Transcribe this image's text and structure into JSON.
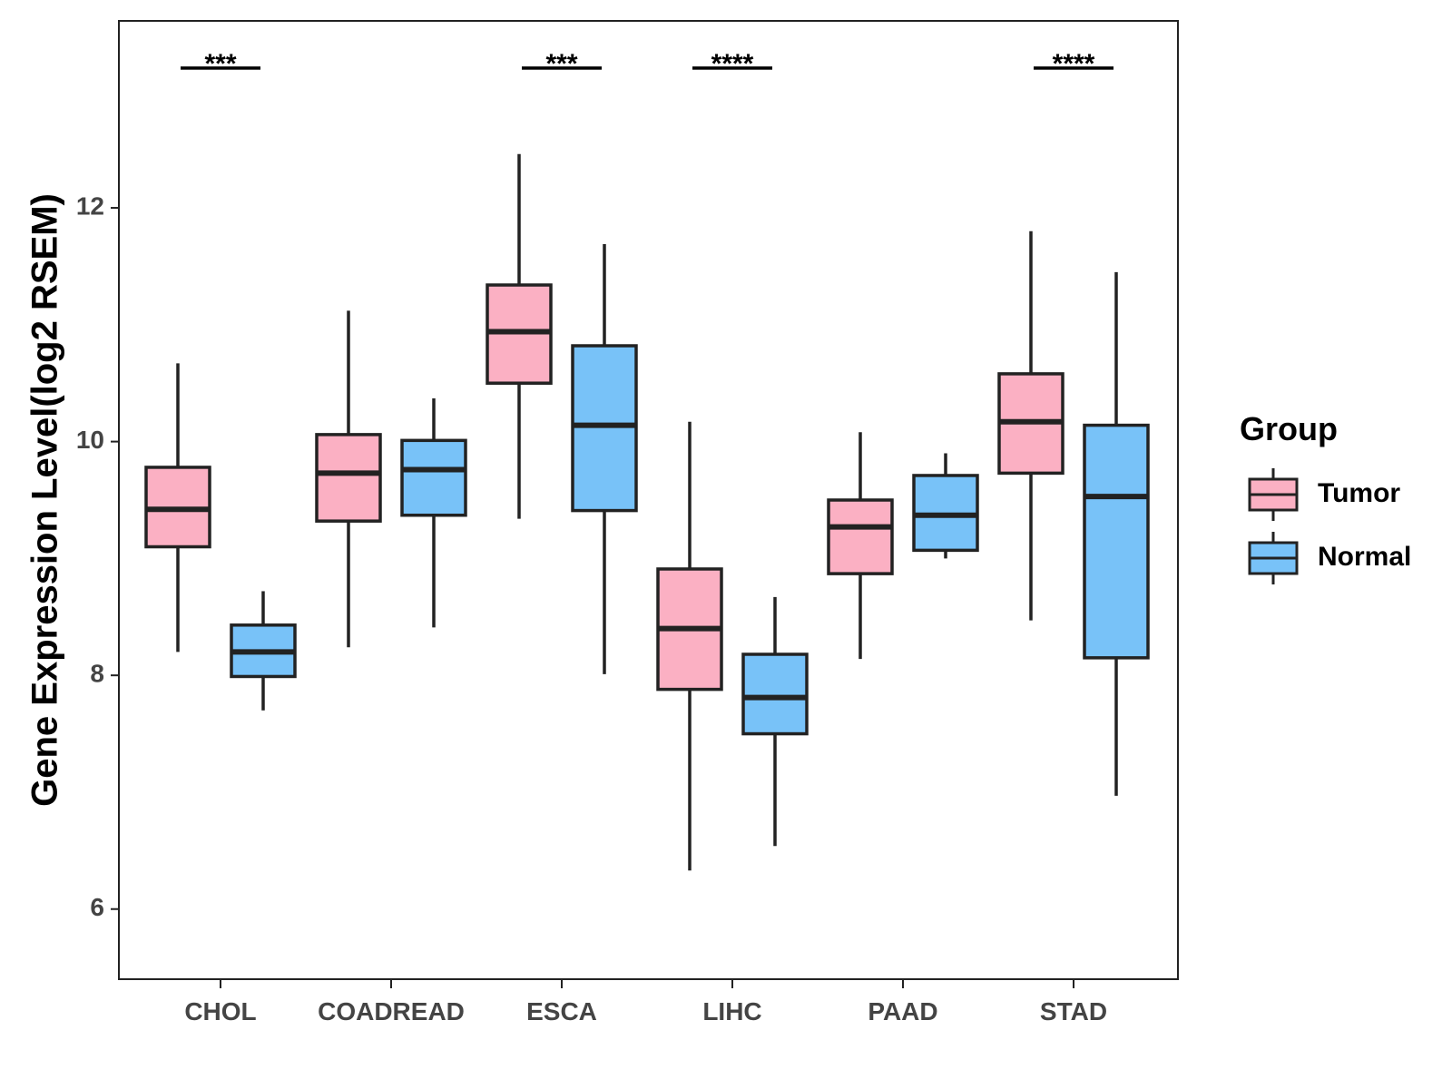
{
  "chart_data": {
    "type": "boxplot",
    "ylabel": "Gene Expression Level(log2 RSEM)",
    "xlabel": "",
    "ylim": [
      5.4,
      13.6
    ],
    "yticks": [
      6,
      8,
      10,
      12
    ],
    "categories": [
      "CHOL",
      "COADREAD",
      "ESCA",
      "LIHC",
      "PAAD",
      "STAD"
    ],
    "legend": {
      "title": "Group",
      "position": "right"
    },
    "series": [
      {
        "name": "Tumor",
        "color": "#FBB0C3",
        "boxes": [
          {
            "min": 8.2,
            "q1": 9.1,
            "median": 9.42,
            "q3": 9.78,
            "max": 10.67
          },
          {
            "min": 8.24,
            "q1": 9.32,
            "median": 9.73,
            "q3": 10.06,
            "max": 11.12
          },
          {
            "min": 9.34,
            "q1": 10.5,
            "median": 10.94,
            "q3": 11.34,
            "max": 12.46
          },
          {
            "min": 6.33,
            "q1": 7.88,
            "median": 8.4,
            "q3": 8.91,
            "max": 10.17
          },
          {
            "min": 8.14,
            "q1": 8.87,
            "median": 9.27,
            "q3": 9.5,
            "max": 10.08
          },
          {
            "min": 8.47,
            "q1": 9.73,
            "median": 10.17,
            "q3": 10.58,
            "max": 11.8
          }
        ]
      },
      {
        "name": "Normal",
        "color": "#78C2F8",
        "boxes": [
          {
            "min": 7.7,
            "q1": 7.99,
            "median": 8.2,
            "q3": 8.43,
            "max": 8.72
          },
          {
            "min": 8.41,
            "q1": 9.37,
            "median": 9.76,
            "q3": 10.01,
            "max": 10.37
          },
          {
            "min": 8.01,
            "q1": 9.41,
            "median": 10.14,
            "q3": 10.82,
            "max": 11.69
          },
          {
            "min": 6.54,
            "q1": 7.5,
            "median": 7.81,
            "q3": 8.18,
            "max": 8.67
          },
          {
            "min": 9.0,
            "q1": 9.07,
            "median": 9.37,
            "q3": 9.71,
            "max": 9.9
          },
          {
            "min": 6.97,
            "q1": 8.15,
            "median": 9.53,
            "q3": 10.14,
            "max": 11.45
          }
        ]
      }
    ],
    "significance": [
      {
        "category": "CHOL",
        "label": "***"
      },
      {
        "category": "COADREAD",
        "label": ""
      },
      {
        "category": "ESCA",
        "label": "***"
      },
      {
        "category": "LIHC",
        "label": "****"
      },
      {
        "category": "PAAD",
        "label": ""
      },
      {
        "category": "STAD",
        "label": "****"
      }
    ],
    "grid": false
  }
}
